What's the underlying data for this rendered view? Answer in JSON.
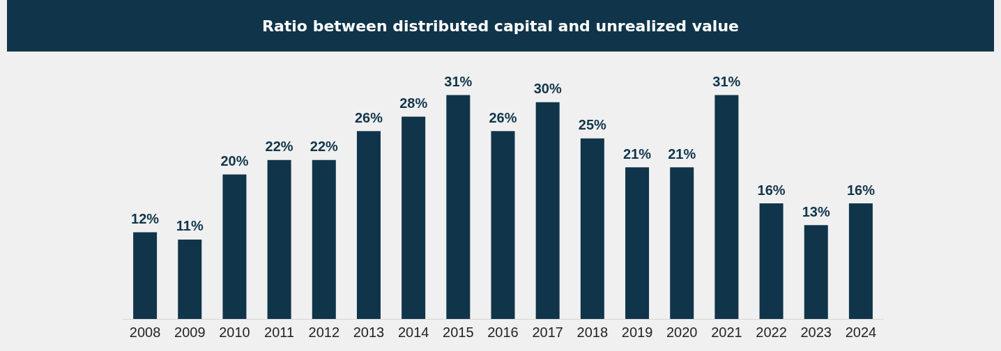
{
  "chart_data": {
    "type": "bar",
    "title": "Ratio between distributed capital and unrealized value",
    "categories": [
      "2008",
      "2009",
      "2010",
      "2011",
      "2012",
      "2013",
      "2014",
      "2015",
      "2016",
      "2017",
      "2018",
      "2019",
      "2020",
      "2021",
      "2022",
      "2023",
      "2024"
    ],
    "values": [
      12,
      11,
      20,
      22,
      22,
      26,
      28,
      31,
      26,
      30,
      25,
      21,
      21,
      31,
      16,
      13,
      16
    ],
    "value_labels": [
      "12%",
      "11%",
      "20%",
      "22%",
      "22%",
      "26%",
      "28%",
      "31%",
      "26%",
      "30%",
      "25%",
      "21%",
      "21%",
      "31%",
      "16%",
      "13%",
      "16%"
    ],
    "color": "#10354a",
    "grid": false,
    "legend": false
  }
}
